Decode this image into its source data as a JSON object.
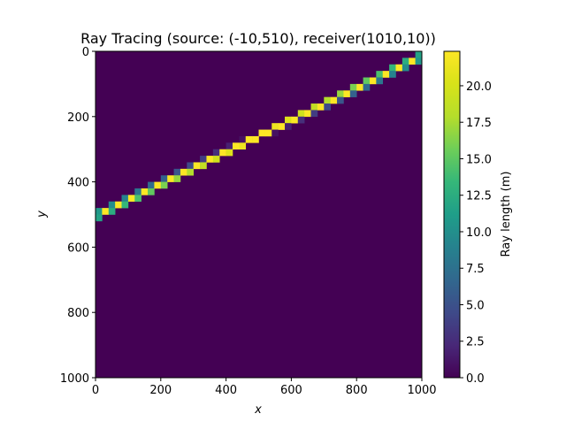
{
  "chart_data": {
    "type": "heatmap",
    "title": "Ray Tracing (source: (-10,510), receiver(1010,10))",
    "xlabel": "x",
    "ylabel": "y",
    "xlim": [
      0,
      1000
    ],
    "ylim": [
      1000,
      0
    ],
    "x_ticks": [
      0,
      200,
      400,
      600,
      800,
      1000
    ],
    "x_tick_labels": [
      "0",
      "200",
      "400",
      "600",
      "800",
      "1000"
    ],
    "y_ticks": [
      0,
      200,
      400,
      600,
      800,
      1000
    ],
    "y_tick_labels": [
      "0",
      "200",
      "400",
      "600",
      "800",
      "1000"
    ],
    "grid": false,
    "colormap": "viridis",
    "background_value": 0.0,
    "cell_size": 20,
    "ray": {
      "source": [
        -10,
        510
      ],
      "receiver": [
        1010,
        10
      ]
    },
    "colorbar": {
      "label": "Ray length (m)",
      "range": [
        0,
        22.36
      ],
      "ticks": [
        0,
        2.5,
        5,
        7.5,
        10,
        12.5,
        15,
        17.5,
        20
      ],
      "tick_labels": [
        "0.0",
        "2.5",
        "5.0",
        "7.5",
        "10.0",
        "12.5",
        "15.0",
        "17.5",
        "20.0"
      ]
    },
    "colors": {
      "low": "#440154",
      "mid": "#21918c",
      "high": "#fde725"
    }
  }
}
